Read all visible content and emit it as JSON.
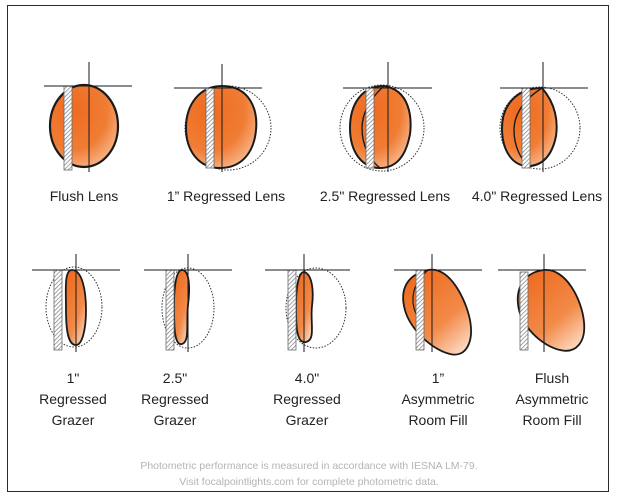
{
  "colors": {
    "orange": "#ee6a1f",
    "orange_light": "#f7b586",
    "line": "#1a1a1a",
    "wall_hatch": "#8a8a8a",
    "footer_text": "#b4b4b4"
  },
  "row1": [
    {
      "label": "Flush Lens"
    },
    {
      "label": "1” Regressed Lens"
    },
    {
      "label": "2.5\" Regressed Lens"
    },
    {
      "label": "4.0\" Regressed Lens"
    }
  ],
  "row2": [
    {
      "lines": [
        "1\"",
        "Regressed",
        "Grazer"
      ]
    },
    {
      "lines": [
        "2.5\"",
        "Regressed",
        "Grazer"
      ]
    },
    {
      "lines": [
        "4.0\"",
        "Regressed",
        "Grazer"
      ]
    },
    {
      "lines": [
        "1”",
        "Asymmetric",
        "Room Fill"
      ]
    },
    {
      "lines": [
        "Flush",
        "Asymmetric",
        "Room Fill"
      ]
    }
  ],
  "footer": {
    "line1": "Photometric performance is measured in accordance with IESNA LM-79.",
    "line2": "Visit focalpointlights.com for complete photometric data."
  }
}
